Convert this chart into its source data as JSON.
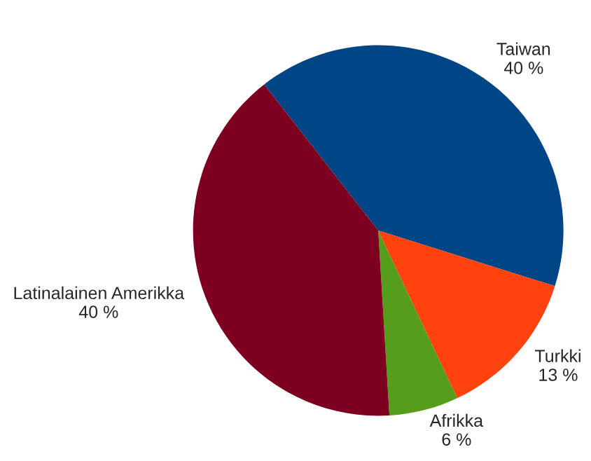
{
  "chart_data": {
    "type": "pie",
    "categories": [
      "Taiwan",
      "Turkki",
      "Afrikka",
      "Latinalainen Amerikka"
    ],
    "values": [
      40,
      13,
      6,
      40
    ],
    "value_labels": [
      "40 %",
      "13 %",
      "6 %",
      "40 %"
    ],
    "colors": [
      "#004586",
      "#ff420e",
      "#579d1c",
      "#7e0021"
    ],
    "legend": false
  }
}
